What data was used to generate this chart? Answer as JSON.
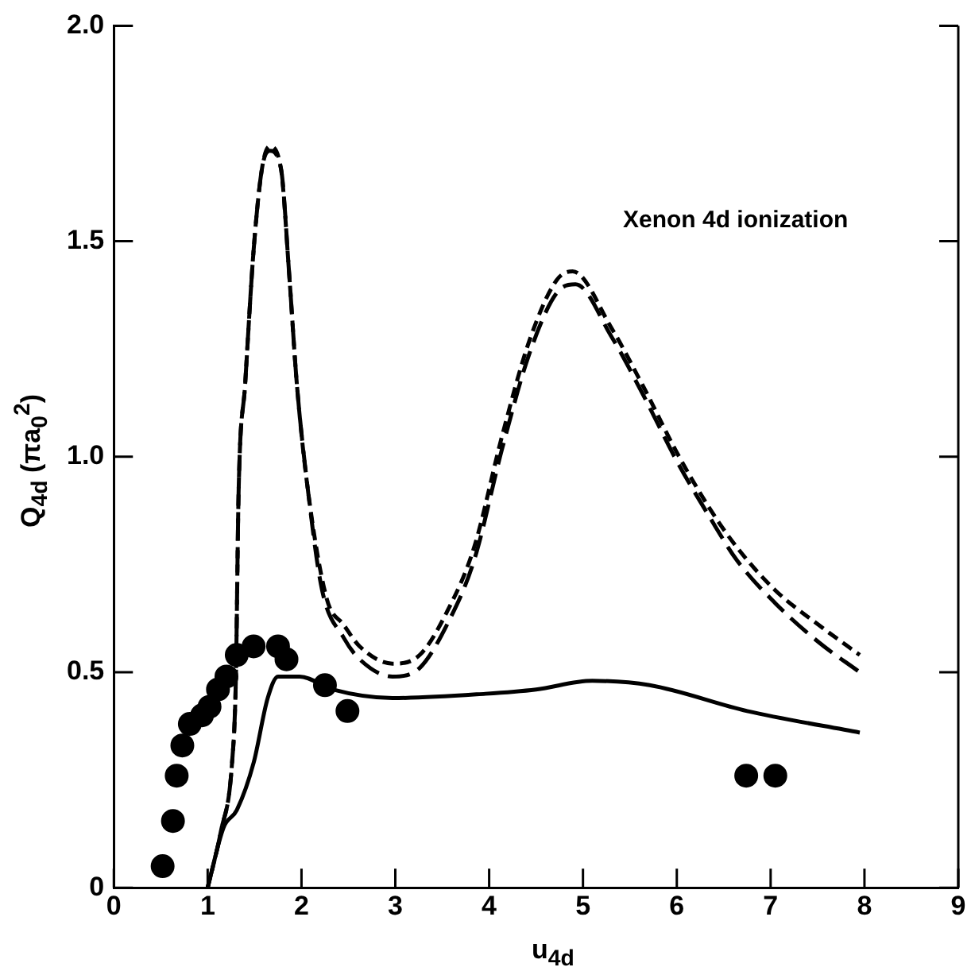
{
  "chart_data": {
    "type": "line",
    "xlabel": "u$_{4d}$",
    "ylabel": "Q$_{4d}$ (πa$_{0}$$^{2}$)",
    "annotations": [
      "Xenon 4d ionization"
    ],
    "xlim": [
      0,
      9
    ],
    "xticks": [
      0,
      1,
      2,
      3,
      4,
      5,
      6,
      7,
      8,
      9
    ],
    "ylim": [
      0,
      2.0
    ],
    "yticks": [
      0,
      {
        "value": 0.5,
        "label": "0.5"
      },
      {
        "value": 1,
        "label": "1.0"
      },
      {
        "value": 1.5,
        "label": "1.5"
      },
      {
        "value": 2,
        "label": "2.0"
      }
    ],
    "grid": false,
    "legend": false,
    "series": [
      {
        "line_style": "dashed",
        "color": "#000000",
        "x": [
          1.0,
          1.14,
          1.26,
          1.3,
          1.33,
          1.4,
          1.49,
          1.58,
          1.66,
          1.78,
          1.87,
          1.95,
          2.07,
          2.22,
          2.45,
          2.62,
          2.97,
          3.26,
          3.55,
          3.84,
          4.14,
          4.43,
          4.72,
          4.92,
          5.3,
          5.65,
          6.0,
          6.35,
          6.64,
          7.05,
          7.51,
          7.95
        ],
        "values": [
          0,
          0.13,
          0.29,
          0.48,
          0.92,
          1.17,
          1.48,
          1.67,
          1.71,
          1.67,
          1.42,
          1.17,
          0.92,
          0.69,
          0.58,
          0.53,
          0.49,
          0.51,
          0.61,
          0.76,
          1.02,
          1.24,
          1.38,
          1.4,
          1.28,
          1.14,
          0.99,
          0.86,
          0.76,
          0.66,
          0.57,
          0.5
        ]
      },
      {
        "line_style": "dashed",
        "color": "#000000",
        "x": [
          1.0,
          1.14,
          1.26,
          1.3,
          1.33,
          1.4,
          1.49,
          1.58,
          1.66,
          1.78,
          1.87,
          1.95,
          2.07,
          2.27,
          2.45,
          2.62,
          2.97,
          3.26,
          3.55,
          3.84,
          4.14,
          4.43,
          4.72,
          4.89,
          5.3,
          5.65,
          6.0,
          6.35,
          6.64,
          7.05,
          7.51,
          7.95
        ],
        "values": [
          0,
          0.13,
          0.29,
          0.48,
          0.92,
          1.17,
          1.48,
          1.67,
          1.72,
          1.67,
          1.42,
          1.17,
          0.92,
          0.67,
          0.61,
          0.56,
          0.52,
          0.54,
          0.64,
          0.79,
          1.05,
          1.27,
          1.41,
          1.43,
          1.3,
          1.16,
          1.01,
          0.88,
          0.79,
          0.69,
          0.61,
          0.54
        ]
      },
      {
        "line_style": "solid",
        "color": "#000000",
        "x": [
          1.0,
          1.17,
          1.31,
          1.49,
          1.64,
          1.75,
          1.98,
          2.33,
          2.97,
          3.96,
          4.5,
          5.1,
          5.71,
          6.75,
          7.95
        ],
        "values": [
          0,
          0.14,
          0.18,
          0.29,
          0.44,
          0.49,
          0.49,
          0.46,
          0.44,
          0.45,
          0.46,
          0.48,
          0.47,
          0.41,
          0.36
        ]
      },
      {
        "type": "scatter",
        "marker": "circle",
        "color": "#000000",
        "x": [
          0.52,
          0.63,
          0.67,
          0.73,
          0.81,
          0.94,
          1.02,
          1.11,
          1.2,
          1.31,
          1.49,
          1.75,
          1.84,
          2.25,
          2.49,
          6.74,
          7.05
        ],
        "values": [
          0.05,
          0.155,
          0.26,
          0.33,
          0.38,
          0.4,
          0.42,
          0.46,
          0.49,
          0.54,
          0.56,
          0.56,
          0.53,
          0.47,
          0.41,
          0.26,
          0.26
        ]
      }
    ]
  }
}
